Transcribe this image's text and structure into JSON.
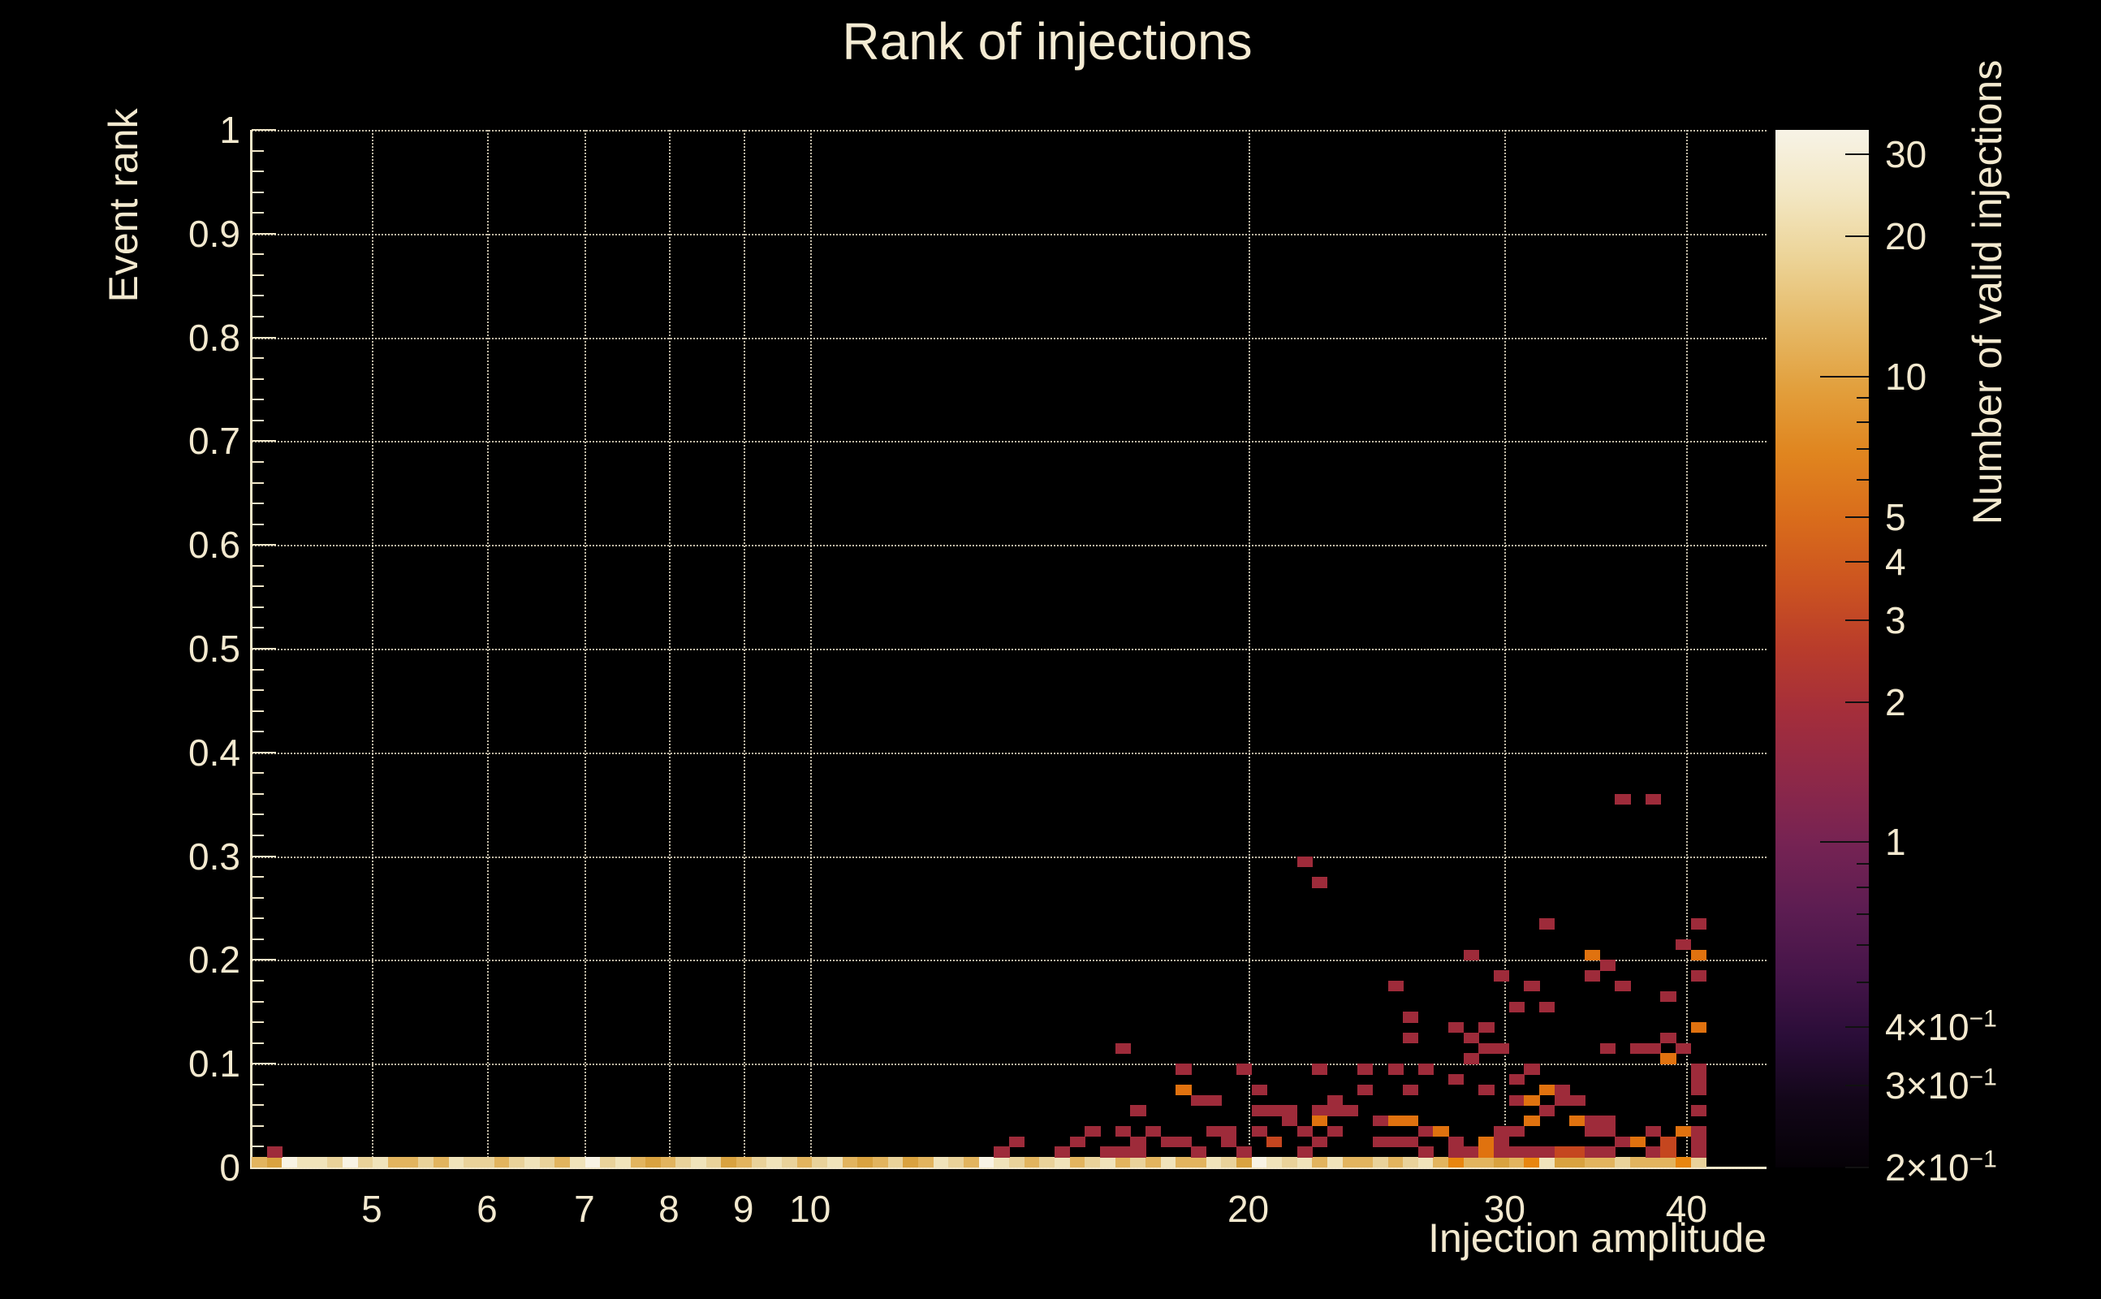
{
  "title": "Rank of injections",
  "colors": {
    "background": "#000000",
    "text": "#f3e9cf",
    "title_text": "#f4ebd3",
    "axis_line": "#f0e6c8",
    "gridline": "#f3e9cf",
    "count_1": "#9e2b3a",
    "count_2": "#c5461f",
    "count_3": "#e0720f",
    "band_W": "#f8f3e4",
    "band_C": "#f0e3ba",
    "band_T": "#e9d29a",
    "band_G": "#e2b45e",
    "band_D": "#d9a23f",
    "band_O": "#e8860f"
  },
  "axes": {
    "x": {
      "label": "Injection amplitude",
      "scale": "log",
      "min": 4.135,
      "max": 45.4,
      "ticks": [
        {
          "v": 5,
          "t": "5"
        },
        {
          "v": 6,
          "t": "6"
        },
        {
          "v": 7,
          "t": "7"
        },
        {
          "v": 8,
          "t": "8"
        },
        {
          "v": 9,
          "t": "9"
        },
        {
          "v": 10,
          "t": "10"
        },
        {
          "v": 20,
          "t": "20"
        },
        {
          "v": 30,
          "t": "30"
        },
        {
          "v": 40,
          "t": "40"
        }
      ]
    },
    "y": {
      "label": "Event rank",
      "scale": "linear",
      "min": 0,
      "max": 1,
      "ticks": [
        {
          "v": 1,
          "t": "1"
        },
        {
          "v": 0.9,
          "t": "0.9"
        },
        {
          "v": 0.8,
          "t": "0.8"
        },
        {
          "v": 0.7,
          "t": "0.7"
        },
        {
          "v": 0.6,
          "t": "0.6"
        },
        {
          "v": 0.5,
          "t": "0.5"
        },
        {
          "v": 0.4,
          "t": "0.4"
        },
        {
          "v": 0.3,
          "t": "0.3"
        },
        {
          "v": 0.2,
          "t": "0.2"
        },
        {
          "v": 0.1,
          "t": "0.1"
        },
        {
          "v": 0,
          "t": "0"
        }
      ],
      "minor_divisions_per_major": 5
    },
    "z": {
      "label": "Number of valid injections",
      "scale": "log",
      "min": 0.2,
      "max": 33.9,
      "ticks": [
        {
          "v": 30,
          "t": "30"
        },
        {
          "v": 20,
          "t": "20"
        },
        {
          "v": 10,
          "t": "10"
        },
        {
          "v": 5,
          "t": "5"
        },
        {
          "v": 4,
          "t": "4"
        },
        {
          "v": 3,
          "t": "3"
        },
        {
          "v": 2,
          "t": "2"
        },
        {
          "v": 1,
          "t": "1"
        },
        {
          "v": 0.4,
          "t": "4×10",
          "sup": "−1"
        },
        {
          "v": 0.3,
          "t": "3×10",
          "sup": "−1"
        },
        {
          "v": 0.2,
          "t": "2×10",
          "sup": "−1"
        }
      ],
      "minor_ticks": [
        0.5,
        0.6,
        0.7,
        0.8,
        0.9,
        6,
        7,
        8,
        9
      ],
      "long_ticks": [
        1,
        10
      ]
    }
  },
  "chart_data": {
    "type": "heatmap",
    "title": "Rank of injections",
    "xlabel": "Injection amplitude",
    "ylabel": "Event rank",
    "zlabel": "Number of valid injections",
    "x_scale": "log",
    "x_range": [
      4.135,
      45.4
    ],
    "y_scale": "linear",
    "y_range": [
      0,
      1
    ],
    "z_scale": "log",
    "z_range": [
      0.2,
      33.9
    ],
    "n_bins_x": 100,
    "n_bins_y": 100,
    "data_extent_note": "bottom row y=0-0.01 filled for all x up to bin 95 (amplitude ~41); sparse cells of count 1-3 concentrated at x>13, y<0.31",
    "band_row_shades": [
      "G",
      "D",
      "W",
      "C",
      "C",
      "T",
      "W",
      "T",
      "C",
      "G",
      "G",
      "T",
      "G",
      "C",
      "T",
      "T",
      "G",
      "T",
      "C",
      "T",
      "G",
      "C",
      "W",
      "T",
      "C",
      "G",
      "D",
      "G",
      "T",
      "C",
      "T",
      "D",
      "G",
      "T",
      "C",
      "T",
      "G",
      "T",
      "C",
      "G",
      "D",
      "G",
      "T",
      "D",
      "G",
      "C",
      "T",
      "G",
      "W",
      "C",
      "T",
      "G",
      "T",
      "C",
      "G",
      "T",
      "C",
      "G",
      "T",
      "G",
      "C",
      "G",
      "G",
      "C",
      "T",
      "D",
      "W",
      "C",
      "T",
      "C",
      "G",
      "C",
      "G",
      "G",
      "T",
      "G",
      "T",
      "C",
      "G",
      "O",
      "G",
      "G",
      "D",
      "G",
      "O",
      "C",
      "D",
      "D",
      "G",
      "G",
      "T",
      "G",
      "G",
      "G",
      "O",
      "T"
    ],
    "cells": [
      [
        1,
        1,
        1
      ],
      [
        49,
        1,
        1
      ],
      [
        50,
        2,
        1
      ],
      [
        53,
        1,
        1
      ],
      [
        54,
        2,
        1
      ],
      [
        55,
        3,
        1
      ],
      [
        56,
        1,
        1
      ],
      [
        57,
        3,
        1
      ],
      [
        57,
        1,
        1
      ],
      [
        58,
        1,
        1
      ],
      [
        58,
        2,
        1
      ],
      [
        57,
        11,
        1
      ],
      [
        58,
        5,
        1
      ],
      [
        59,
        3,
        1
      ],
      [
        60,
        2,
        1
      ],
      [
        80,
        20,
        1
      ],
      [
        69,
        29,
        1
      ],
      [
        70,
        27,
        1
      ],
      [
        85,
        23,
        1
      ],
      [
        95,
        23,
        1
      ],
      [
        94,
        21,
        1
      ],
      [
        88,
        20,
        3
      ],
      [
        89,
        19,
        1
      ],
      [
        95,
        20,
        3
      ],
      [
        82,
        18,
        1
      ],
      [
        88,
        18,
        1
      ],
      [
        95,
        18,
        1
      ],
      [
        84,
        17,
        1
      ],
      [
        90,
        17,
        1
      ],
      [
        93,
        16,
        1
      ],
      [
        83,
        15,
        1
      ],
      [
        85,
        15,
        1
      ],
      [
        95,
        13,
        3
      ],
      [
        93,
        12,
        1
      ],
      [
        94,
        11,
        1
      ],
      [
        89,
        11,
        1
      ],
      [
        91,
        11,
        1
      ],
      [
        92,
        11,
        1
      ],
      [
        93,
        10,
        3
      ],
      [
        84,
        9,
        1
      ],
      [
        95,
        9,
        1
      ],
      [
        83,
        8,
        1
      ],
      [
        95,
        8,
        1
      ],
      [
        95,
        7,
        1
      ],
      [
        85,
        7,
        3
      ],
      [
        86,
        7,
        1
      ],
      [
        86,
        6,
        1
      ],
      [
        87,
        6,
        1
      ],
      [
        83,
        6,
        1
      ],
      [
        84,
        6,
        3
      ],
      [
        85,
        5,
        1
      ],
      [
        87,
        4,
        3
      ],
      [
        88,
        4,
        1
      ],
      [
        89,
        4,
        1
      ],
      [
        89,
        3,
        1
      ],
      [
        83,
        3,
        1
      ],
      [
        84,
        4,
        3
      ],
      [
        92,
        3,
        1
      ],
      [
        94,
        3,
        3
      ],
      [
        95,
        5,
        1
      ],
      [
        75,
        17,
        1
      ],
      [
        76,
        14,
        1
      ],
      [
        76,
        12,
        1
      ],
      [
        79,
        13,
        1
      ],
      [
        81,
        13,
        1
      ],
      [
        80,
        12,
        1
      ],
      [
        81,
        11,
        1
      ],
      [
        82,
        11,
        1
      ],
      [
        80,
        10,
        1
      ],
      [
        61,
        9,
        1
      ],
      [
        65,
        9,
        1
      ],
      [
        70,
        9,
        1
      ],
      [
        73,
        9,
        1
      ],
      [
        75,
        9,
        1
      ],
      [
        77,
        9,
        1
      ],
      [
        61,
        7,
        3
      ],
      [
        62,
        6,
        1
      ],
      [
        63,
        6,
        1
      ],
      [
        66,
        7,
        1
      ],
      [
        73,
        7,
        1
      ],
      [
        76,
        7,
        1
      ],
      [
        79,
        8,
        1
      ],
      [
        81,
        7,
        1
      ],
      [
        66,
        5,
        1
      ],
      [
        67,
        5,
        1
      ],
      [
        68,
        5,
        1
      ],
      [
        70,
        5,
        1
      ],
      [
        71,
        5,
        1
      ],
      [
        72,
        5,
        1
      ],
      [
        71,
        6,
        1
      ],
      [
        74,
        4,
        1
      ],
      [
        75,
        4,
        3
      ],
      [
        76,
        4,
        3
      ],
      [
        77,
        3,
        1
      ],
      [
        78,
        3,
        3
      ],
      [
        68,
        4,
        1
      ],
      [
        70,
        4,
        3
      ],
      [
        63,
        3,
        1
      ],
      [
        64,
        3,
        1
      ],
      [
        66,
        3,
        1
      ],
      [
        69,
        3,
        1
      ],
      [
        71,
        3,
        1
      ],
      [
        61,
        2,
        1
      ],
      [
        64,
        2,
        1
      ],
      [
        67,
        2,
        2
      ],
      [
        70,
        2,
        1
      ],
      [
        74,
        2,
        1
      ],
      [
        75,
        2,
        1
      ],
      [
        76,
        2,
        1
      ],
      [
        79,
        2,
        1
      ],
      [
        81,
        2,
        3
      ],
      [
        62,
        1,
        1
      ],
      [
        65,
        1,
        1
      ],
      [
        69,
        1,
        1
      ],
      [
        77,
        1,
        1
      ],
      [
        79,
        1,
        1
      ],
      [
        80,
        1,
        1
      ],
      [
        81,
        1,
        3
      ],
      [
        82,
        3,
        1
      ],
      [
        83,
        3,
        1
      ],
      [
        82,
        1,
        1
      ],
      [
        82,
        2,
        1
      ],
      [
        83,
        1,
        1
      ],
      [
        84,
        1,
        1
      ],
      [
        85,
        1,
        1
      ],
      [
        86,
        1,
        2
      ],
      [
        87,
        1,
        2
      ],
      [
        88,
        3,
        1
      ],
      [
        88,
        1,
        1
      ],
      [
        89,
        1,
        1
      ],
      [
        90,
        2,
        1
      ],
      [
        91,
        2,
        3
      ],
      [
        92,
        1,
        1
      ],
      [
        93,
        1,
        2
      ],
      [
        93,
        2,
        2
      ],
      [
        95,
        1,
        1
      ],
      [
        95,
        2,
        1
      ],
      [
        95,
        3,
        1
      ],
      [
        90,
        35,
        1
      ],
      [
        92,
        35,
        1
      ]
    ],
    "count_colors": {
      "1": "#9e2b3a",
      "2": "#c5461f",
      "3": "#e0720f"
    },
    "colorbar_gradient_bottom_to_top": [
      "#050106",
      "#120618",
      "#2a0d38",
      "#461549",
      "#5d1d52",
      "#762353",
      "#8e2848",
      "#a42e3b",
      "#b93c2b",
      "#cc5420",
      "#d96c1b",
      "#e0851f",
      "#e29f3c",
      "#e6ba68",
      "#ecd396",
      "#f3e7c3",
      "#f7f3e6"
    ],
    "legend_position": "right",
    "grid": "dotted at labeled major ticks"
  }
}
